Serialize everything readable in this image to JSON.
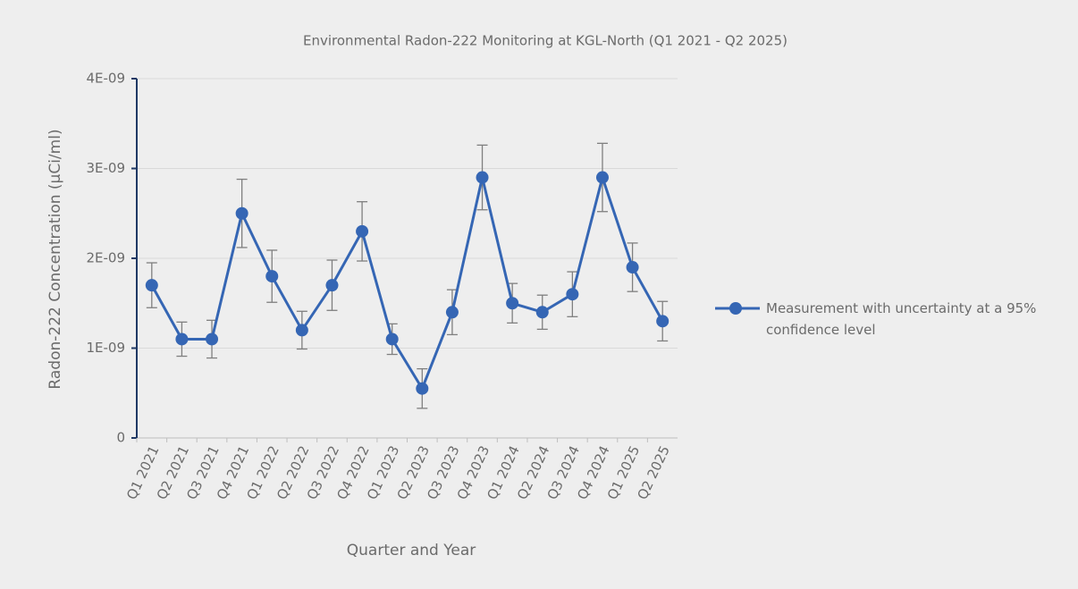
{
  "chart_data": {
    "type": "line",
    "title": "Environmental Radon-222 Monitoring at KGL-North (Q1 2021 - Q2 2025)",
    "x_label": "Quarter and Year",
    "y_label": "Radon-222 Concentration (µCi/ml)",
    "categories": [
      "Q1 2021",
      "Q2 2021",
      "Q3 2021",
      "Q4 2021",
      "Q1 2022",
      "Q2 2022",
      "Q3 2022",
      "Q4 2022",
      "Q1 2023",
      "Q2 2023",
      "Q3 2023",
      "Q4 2023",
      "Q1 2024",
      "Q2 2024",
      "Q3 2024",
      "Q4 2024",
      "Q1 2025",
      "Q2 2025"
    ],
    "series": [
      {
        "name": "Measurement with uncertainty at a 95% confidence level",
        "color": "#3566b4",
        "values": [
          1.7e-09,
          1.1e-09,
          1.1e-09,
          2.5e-09,
          1.8e-09,
          1.2e-09,
          1.7e-09,
          2.3e-09,
          1.1e-09,
          5.5e-10,
          1.4e-09,
          2.9e-09,
          1.5e-09,
          1.4e-09,
          1.6e-09,
          2.9e-09,
          1.9e-09,
          1.3e-09
        ],
        "errors": [
          2.5e-10,
          1.9e-10,
          2.1e-10,
          3.8e-10,
          2.9e-10,
          2.1e-10,
          2.8e-10,
          3.3e-10,
          1.7e-10,
          2.2e-10,
          2.5e-10,
          3.6e-10,
          2.2e-10,
          1.9e-10,
          2.5e-10,
          3.8e-10,
          2.7e-10,
          2.2e-10
        ]
      }
    ],
    "ylim": [
      0,
      4e-09
    ],
    "yticks": [
      0,
      {
        "value": 1e-09,
        "label": "1E-09"
      },
      {
        "value": 2e-09,
        "label": "2E-09"
      },
      {
        "value": 3e-09,
        "label": "3E-09"
      },
      {
        "value": 4e-09,
        "label": "4E-09"
      }
    ],
    "grid": true,
    "legend": "right"
  }
}
